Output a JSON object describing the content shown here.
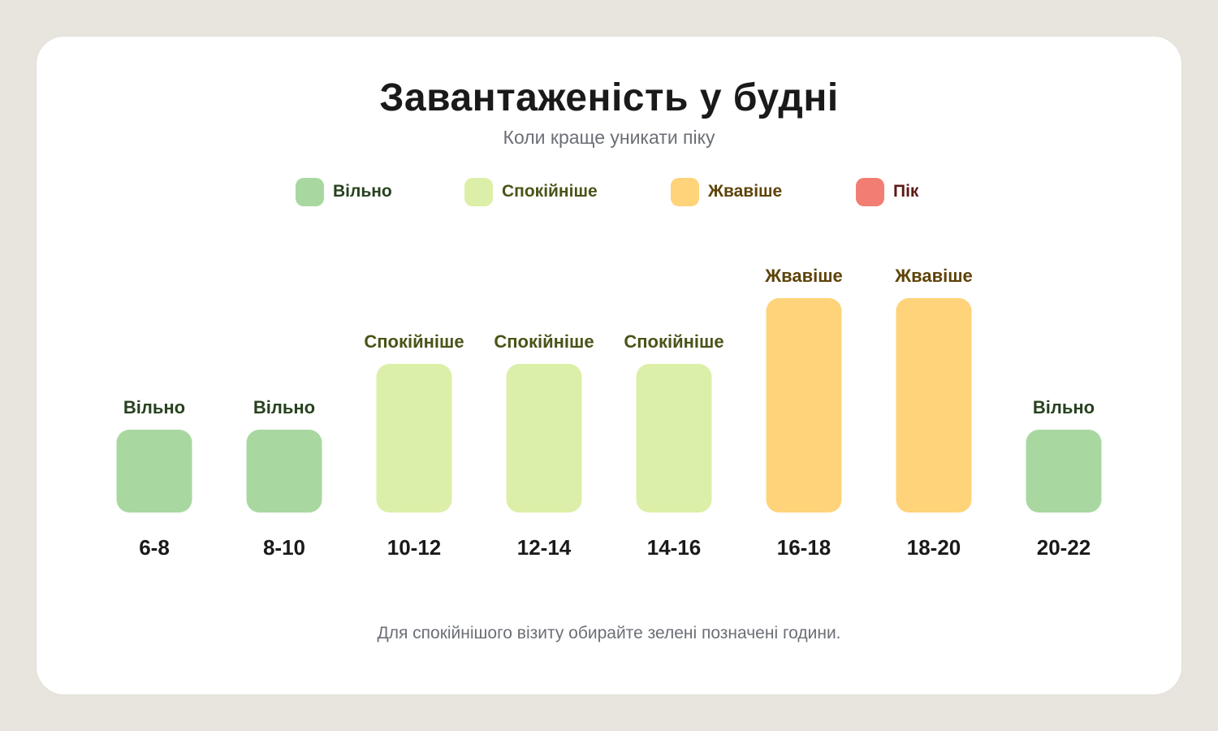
{
  "title": "Завантаженість у будні",
  "subtitle": "Коли краще уникати піку",
  "footer": "Для спокійнішого візиту обирайте зелені позначені години.",
  "legend": [
    {
      "key": "free",
      "label": "Вільно",
      "color": "#a8d8a0",
      "text_color": "#27421f"
    },
    {
      "key": "calm",
      "label": "Спокійніше",
      "color": "#dcefa8",
      "text_color": "#4a5418"
    },
    {
      "key": "busy",
      "label": "Жвавіше",
      "color": "#ffd37a",
      "text_color": "#5e4308"
    },
    {
      "key": "peak",
      "label": "Пік",
      "color": "#f27d72",
      "text_color": "#5c1a14"
    }
  ],
  "chart_data": {
    "type": "bar",
    "categories": [
      "6-8",
      "8-10",
      "10-12",
      "12-14",
      "14-16",
      "16-18",
      "18-20",
      "20-22"
    ],
    "values": [
      1,
      1,
      2,
      2,
      2,
      3,
      3,
      1
    ],
    "value_labels": [
      "Вільно",
      "Вільно",
      "Спокійніше",
      "Спокійніше",
      "Спокійніше",
      "Жвавіше",
      "Жвавіше",
      "Вільно"
    ],
    "level_keys": [
      "free",
      "free",
      "calm",
      "calm",
      "calm",
      "busy",
      "busy",
      "free"
    ],
    "ylim": [
      0,
      4
    ],
    "grid": false,
    "legend_position": "top"
  }
}
